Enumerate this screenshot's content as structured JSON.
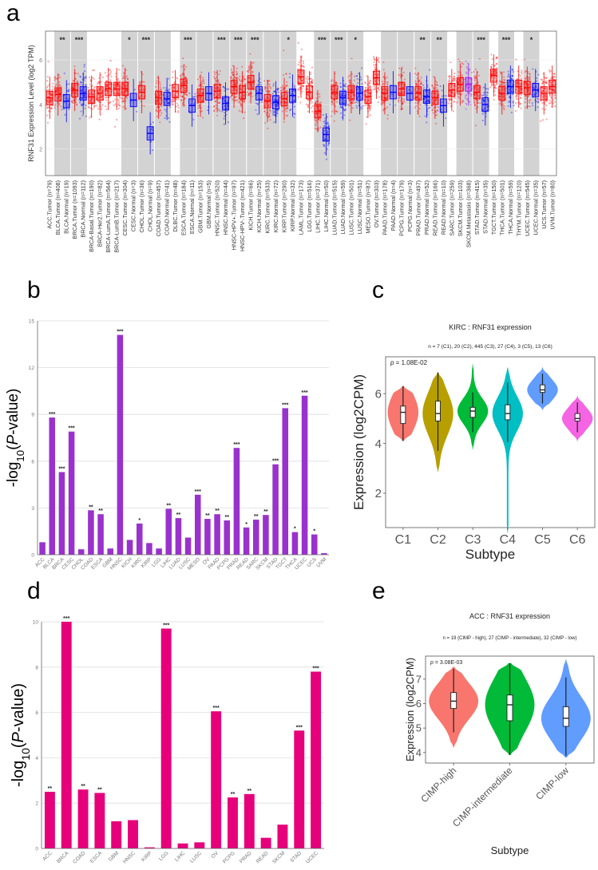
{
  "panel_letters": {
    "a": "a",
    "b": "b",
    "c": "c",
    "d": "d",
    "e": "e"
  },
  "chart_data": [
    {
      "id": "a",
      "type": "box",
      "ylabel": "RNF31 Expression Level (log2 TPM)",
      "ylim": [
        0.8,
        7.3
      ],
      "yticks": [
        2,
        4,
        6
      ],
      "colors": {
        "Tumor": "#FF0000",
        "Normal": "#0000FF",
        "Metastasis": "#A020F0",
        "shade": "#D3D3D3"
      },
      "groups": [
        {
          "label": "ACC.Tumor (n=79)",
          "kind": "Tumor",
          "n": 79,
          "median": 4.3
        },
        {
          "label": "BLCA.Tumor (n=408)",
          "kind": "Tumor",
          "n": 408,
          "median": 4.45
        },
        {
          "label": "BLCA.Normal (n=19)",
          "kind": "Normal",
          "n": 19,
          "median": 4.15
        },
        {
          "label": "BRCA.Tumor (n=1093)",
          "kind": "Tumor",
          "n": 1093,
          "median": 4.65
        },
        {
          "label": "BRCA.Normal (n=112)",
          "kind": "Normal",
          "n": 112,
          "median": 4.5
        },
        {
          "label": "BRCA-Basal.Tumor (n=190)",
          "kind": "Tumor",
          "n": 190,
          "median": 4.35
        },
        {
          "label": "BRCA-Her2.Tumor (n=82)",
          "kind": "Tumor",
          "n": 82,
          "median": 4.5
        },
        {
          "label": "BRCA-LumA.Tumor (n=564)",
          "kind": "Tumor",
          "n": 564,
          "median": 4.7
        },
        {
          "label": "BRCA-LumB.Tumor (n=217)",
          "kind": "Tumor",
          "n": 217,
          "median": 4.7
        },
        {
          "label": "CESC.Tumor (n=304)",
          "kind": "Tumor",
          "n": 304,
          "median": 4.7
        },
        {
          "label": "CESC.Normal (n=3)",
          "kind": "Normal",
          "n": 3,
          "median": 4.2
        },
        {
          "label": "CHOL.Tumor (n=36)",
          "kind": "Tumor",
          "n": 36,
          "median": 4.55
        },
        {
          "label": "CHOL.Normal (n=9)",
          "kind": "Normal",
          "n": 9,
          "median": 2.7
        },
        {
          "label": "COAD.Tumor (n=457)",
          "kind": "Tumor",
          "n": 457,
          "median": 4.3
        },
        {
          "label": "COAD.Normal (n=41)",
          "kind": "Normal",
          "n": 41,
          "median": 4.25
        },
        {
          "label": "DLBC.Tumor (n=48)",
          "kind": "Tumor",
          "n": 48,
          "median": 4.6
        },
        {
          "label": "ESCA.Tumor (n=184)",
          "kind": "Tumor",
          "n": 184,
          "median": 4.85
        },
        {
          "label": "ESCA.Normal (n=11)",
          "kind": "Normal",
          "n": 11,
          "median": 3.95
        },
        {
          "label": "GBM.Tumor (n=153)",
          "kind": "Tumor",
          "n": 153,
          "median": 4.4
        },
        {
          "label": "GBM.Normal (n=5)",
          "kind": "Normal",
          "n": 5,
          "median": 4.5
        },
        {
          "label": "HNSC.Tumor (n=520)",
          "kind": "Tumor",
          "n": 520,
          "median": 4.6
        },
        {
          "label": "HNSC.Normal (n=44)",
          "kind": "Normal",
          "n": 44,
          "median": 4.05
        },
        {
          "label": "HNSC-HPV+.Tumor (n=97)",
          "kind": "Tumor",
          "n": 97,
          "median": 4.8
        },
        {
          "label": "HNSC-HPV-.Tumor (n=421)",
          "kind": "Tumor",
          "n": 421,
          "median": 4.55
        },
        {
          "label": "KICH.Tumor (n=66)",
          "kind": "Tumor",
          "n": 66,
          "median": 5.0
        },
        {
          "label": "KICH.Normal (n=25)",
          "kind": "Normal",
          "n": 25,
          "median": 4.5
        },
        {
          "label": "KIRC.Tumor (n=533)",
          "kind": "Tumor",
          "n": 533,
          "median": 4.15
        },
        {
          "label": "KIRC.Normal (n=72)",
          "kind": "Normal",
          "n": 72,
          "median": 4.1
        },
        {
          "label": "KIRP.Tumor (n=290)",
          "kind": "Tumor",
          "n": 290,
          "median": 4.25
        },
        {
          "label": "KIRP.Normal (n=32)",
          "kind": "Normal",
          "n": 32,
          "median": 4.4
        },
        {
          "label": "LAML.Tumor (n=173)",
          "kind": "Tumor",
          "n": 173,
          "median": 5.25
        },
        {
          "label": "LGG.Tumor (n=516)",
          "kind": "Tumor",
          "n": 516,
          "median": 4.55
        },
        {
          "label": "LIHC.Tumor (n=371)",
          "kind": "Tumor",
          "n": 371,
          "median": 3.7
        },
        {
          "label": "LIHC.Normal (n=50)",
          "kind": "Normal",
          "n": 50,
          "median": 2.65
        },
        {
          "label": "LUAD.Tumor (n=515)",
          "kind": "Tumor",
          "n": 515,
          "median": 4.55
        },
        {
          "label": "LUAD.Normal (n=59)",
          "kind": "Normal",
          "n": 59,
          "median": 4.3
        },
        {
          "label": "LUSC.Tumor (n=501)",
          "kind": "Tumor",
          "n": 501,
          "median": 4.55
        },
        {
          "label": "LUSC.Normal (n=51)",
          "kind": "Normal",
          "n": 51,
          "median": 4.5
        },
        {
          "label": "MESO.Tumor (n=87)",
          "kind": "Tumor",
          "n": 87,
          "median": 4.35
        },
        {
          "label": "OV.Tumor (n=303)",
          "kind": "Tumor",
          "n": 303,
          "median": 5.2
        },
        {
          "label": "PAAD.Tumor (n=178)",
          "kind": "Tumor",
          "n": 178,
          "median": 4.5
        },
        {
          "label": "PAAD.Normal (n=4)",
          "kind": "Normal",
          "n": 4,
          "median": 4.55
        },
        {
          "label": "PCPG.Tumor (n=179)",
          "kind": "Tumor",
          "n": 179,
          "median": 4.7
        },
        {
          "label": "PCPG.Normal (n=3)",
          "kind": "Normal",
          "n": 3,
          "median": 4.5
        },
        {
          "label": "PRAD.Tumor (n=497)",
          "kind": "Tumor",
          "n": 497,
          "median": 4.5
        },
        {
          "label": "PRAD.Normal (n=52)",
          "kind": "Normal",
          "n": 52,
          "median": 4.35
        },
        {
          "label": "READ.Tumor (n=166)",
          "kind": "Tumor",
          "n": 166,
          "median": 4.3
        },
        {
          "label": "READ.Normal (n=10)",
          "kind": "Normal",
          "n": 10,
          "median": 3.95
        },
        {
          "label": "SARC.Tumor (n=259)",
          "kind": "Tumor",
          "n": 259,
          "median": 4.65
        },
        {
          "label": "SKCM.Tumor (n=103)",
          "kind": "Tumor",
          "n": 103,
          "median": 4.9
        },
        {
          "label": "SKCM.Metastasis (n=368)",
          "kind": "Metastasis",
          "n": 368,
          "median": 4.9
        },
        {
          "label": "STAD.Tumor (n=415)",
          "kind": "Tumor",
          "n": 415,
          "median": 4.55
        },
        {
          "label": "STAD.Normal (n=35)",
          "kind": "Normal",
          "n": 35,
          "median": 4.0
        },
        {
          "label": "TGCT.Tumor (n=150)",
          "kind": "Tumor",
          "n": 150,
          "median": 5.3
        },
        {
          "label": "THCA.Tumor (n=501)",
          "kind": "Tumor",
          "n": 501,
          "median": 4.5
        },
        {
          "label": "THCA.Normal (n=59)",
          "kind": "Normal",
          "n": 59,
          "median": 4.8
        },
        {
          "label": "THYM.Tumor (n=120)",
          "kind": "Tumor",
          "n": 120,
          "median": 4.8
        },
        {
          "label": "UCEC.Tumor (n=545)",
          "kind": "Tumor",
          "n": 545,
          "median": 4.75
        },
        {
          "label": "UCEC.Normal (n=35)",
          "kind": "Normal",
          "n": 35,
          "median": 4.65
        },
        {
          "label": "UCS.Tumor (n=57)",
          "kind": "Tumor",
          "n": 57,
          "median": 4.5
        },
        {
          "label": "UVM.Tumor (n=80)",
          "kind": "Tumor",
          "n": 80,
          "median": 4.8
        }
      ],
      "comparisons": [
        {
          "groups": [
            1,
            2
          ],
          "sig": "**"
        },
        {
          "groups": [
            3,
            4
          ],
          "sig": "***"
        },
        {
          "groups": [
            9,
            10
          ],
          "sig": "*"
        },
        {
          "groups": [
            11,
            12
          ],
          "sig": "***"
        },
        {
          "groups": [
            13,
            14
          ],
          "sig": ""
        },
        {
          "groups": [
            16,
            17
          ],
          "sig": "***"
        },
        {
          "groups": [
            18,
            19
          ],
          "sig": ""
        },
        {
          "groups": [
            20,
            21
          ],
          "sig": "***"
        },
        {
          "groups": [
            22,
            23
          ],
          "sig": "***"
        },
        {
          "groups": [
            24,
            25
          ],
          "sig": "***"
        },
        {
          "groups": [
            26,
            27
          ],
          "sig": ""
        },
        {
          "groups": [
            28,
            29
          ],
          "sig": "*"
        },
        {
          "groups": [
            32,
            33
          ],
          "sig": "***"
        },
        {
          "groups": [
            34,
            35
          ],
          "sig": "***"
        },
        {
          "groups": [
            36,
            37
          ],
          "sig": "*"
        },
        {
          "groups": [
            40,
            41
          ],
          "sig": ""
        },
        {
          "groups": [
            42,
            43
          ],
          "sig": ""
        },
        {
          "groups": [
            44,
            45
          ],
          "sig": "**"
        },
        {
          "groups": [
            46,
            47
          ],
          "sig": "**"
        },
        {
          "groups": [
            49,
            50
          ],
          "sig": ""
        },
        {
          "groups": [
            51,
            52
          ],
          "sig": "***"
        },
        {
          "groups": [
            54,
            55
          ],
          "sig": "***"
        },
        {
          "groups": [
            57,
            58
          ],
          "sig": "*"
        }
      ]
    },
    {
      "id": "b",
      "type": "bar",
      "ylabel_parts": [
        "-log",
        "10",
        "(",
        "P",
        "-value)"
      ],
      "ylim": [
        0,
        15
      ],
      "yticks": [
        "0",
        "3",
        "6",
        "9",
        "12",
        "15"
      ],
      "grid": true,
      "color": "#9932CC",
      "categories": [
        "ACC",
        "BLCA",
        "BRCA",
        "CESC",
        "CHOL",
        "COAD",
        "ESCA",
        "GBM",
        "HNSC",
        "KICH",
        "KIRC",
        "KIRP",
        "LGG",
        "LIHC",
        "LUAD",
        "LUSC",
        "MESO",
        "OV",
        "PAAD",
        "PCPG",
        "PRAD",
        "READ",
        "SARC",
        "SKCM",
        "STAD",
        "TGCT",
        "THCA",
        "UCEC",
        "UCS",
        "UVM"
      ],
      "values": [
        0.8,
        8.8,
        5.3,
        7.9,
        0.35,
        2.85,
        2.6,
        0.4,
        14.1,
        0.95,
        2.0,
        0.75,
        0.4,
        2.95,
        2.35,
        1.1,
        3.85,
        2.3,
        2.6,
        2.2,
        6.85,
        1.75,
        2.25,
        2.55,
        5.8,
        9.4,
        1.45,
        10.2,
        1.3,
        0.1
      ],
      "labels": [
        "",
        "***",
        "***",
        "***",
        "",
        "**",
        "**",
        "",
        "***",
        "",
        "*",
        "",
        "",
        "**",
        "**",
        "",
        "***",
        "**",
        "**",
        "**",
        "***",
        "*",
        "**",
        "**",
        "***",
        "***",
        "*",
        "***",
        "*",
        ""
      ]
    },
    {
      "id": "c",
      "type": "violin",
      "title": "KIRC : RNF31 expression",
      "subtitle": "n = 7 (C1), 20 (C2), 445 (C3), 27 (C4), 3 (C5), 13 (C6)",
      "pvalue_label": "p",
      "pvalue": " = 1.08E-02",
      "xlabel": "Subtype",
      "ylabel": "Expression (log2CPM)",
      "ylim": [
        0.62,
        7.48
      ],
      "yticks": [
        "2",
        "4",
        "6"
      ],
      "categories": [
        "C1",
        "C2",
        "C3",
        "C4",
        "C5",
        "C6"
      ],
      "colors": [
        "#F8766D",
        "#B79F00",
        "#00BA38",
        "#00BFC4",
        "#619CFF",
        "#F564E3"
      ],
      "median": [
        5.25,
        5.2,
        5.3,
        5.2,
        6.15,
        5.0
      ],
      "q1": [
        4.8,
        4.9,
        5.05,
        4.95,
        6.05,
        4.9
      ],
      "q3": [
        5.5,
        5.7,
        5.45,
        5.55,
        6.35,
        5.2
      ],
      "min": [
        4.1,
        2.85,
        3.75,
        0.4,
        5.35,
        4.1
      ],
      "max": [
        6.3,
        6.85,
        7.2,
        7.05,
        7.05,
        5.9
      ]
    },
    {
      "id": "d",
      "type": "bar",
      "ylabel_parts": [
        "-log",
        "10",
        "(",
        "P",
        "-value)"
      ],
      "ylim": [
        0,
        10
      ],
      "yticks": [
        "0",
        "2",
        "4",
        "6",
        "8",
        "10"
      ],
      "grid": true,
      "color": "#E6007A",
      "categories": [
        "ACC",
        "BRCA",
        "COAD",
        "ESCA",
        "GBM",
        "HNSC",
        "KIRP",
        "LGG",
        "LIHC",
        "LUSC",
        "OV",
        "PCPG",
        "PRAD",
        "READ",
        "SKCM",
        "STAD",
        "UCEC"
      ],
      "values": [
        2.5,
        10.0,
        2.6,
        2.45,
        1.2,
        1.25,
        0.05,
        9.7,
        0.22,
        0.27,
        6.05,
        2.25,
        2.4,
        0.47,
        1.05,
        5.2,
        7.8
      ],
      "labels": [
        "**",
        "***",
        "**",
        "**",
        "",
        "",
        "",
        "***",
        "",
        "",
        "***",
        "**",
        "**",
        "",
        "",
        "***",
        "***"
      ]
    },
    {
      "id": "e",
      "type": "violin",
      "title": "ACC : RNF31 expression",
      "subtitle": "n = 19 (CIMP - high),  27 (CIMP - intermediate), 32 (CIMP - low)",
      "pvalue_label": "p",
      "pvalue": " = 3.08E-03",
      "xlabel": "Subtype",
      "ylabel": "Expression (log2CPM)",
      "ylim": [
        3.57,
        7.94
      ],
      "yticks": [
        "4",
        "5",
        "6",
        "7"
      ],
      "categories": [
        "CIMP-high",
        "CIMP-intermediate",
        "CIMP-low"
      ],
      "colors": [
        "#F8766D",
        "#00BA38",
        "#619CFF"
      ],
      "median": [
        6.1,
        5.95,
        5.4
      ],
      "q1": [
        5.8,
        5.3,
        5.07
      ],
      "q3": [
        6.45,
        6.35,
        5.87
      ],
      "min": [
        4.2,
        3.9,
        3.8
      ],
      "max": [
        7.5,
        7.65,
        7.8
      ]
    }
  ]
}
